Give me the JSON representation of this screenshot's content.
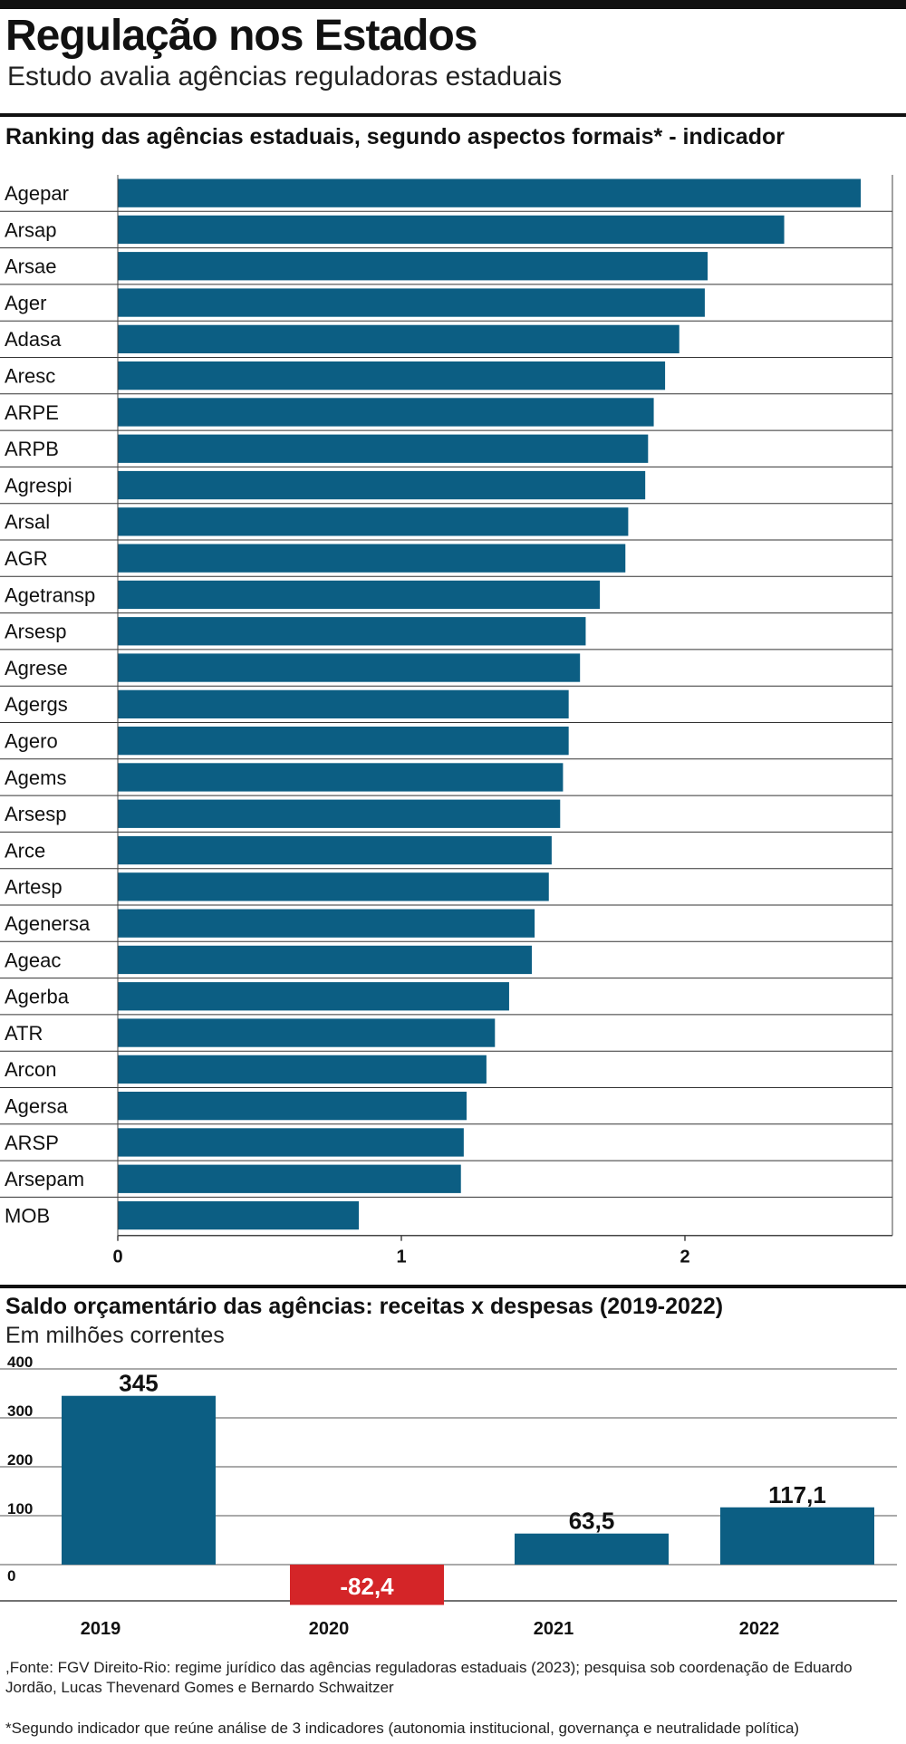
{
  "header": {
    "title": "Regulação nos Estados",
    "subtitle": "Estudo avalia agências reguladoras estaduais"
  },
  "chart_data": [
    {
      "type": "bar",
      "orientation": "horizontal",
      "title": "Ranking das agências estaduais, segundo aspectos formais* - indicador",
      "categories": [
        "Agepar",
        "Arsap",
        "Arsae",
        "Ager",
        "Adasa",
        "Aresc",
        "ARPE",
        "ARPB",
        "Agrespi",
        "Arsal",
        "AGR",
        "Agetransp",
        "Arsesp",
        "Agrese",
        "Agergs",
        "Agero",
        "Agems",
        "Arsesp",
        "Arce",
        "Artesp",
        "Agenersa",
        "Ageac",
        "Agerba",
        "ATR",
        "Arcon",
        "Agersa",
        "ARSP",
        "Arsepam",
        "MOB"
      ],
      "values": [
        2.62,
        2.35,
        2.08,
        2.07,
        1.98,
        1.93,
        1.89,
        1.87,
        1.86,
        1.8,
        1.79,
        1.7,
        1.65,
        1.63,
        1.59,
        1.59,
        1.57,
        1.56,
        1.53,
        1.52,
        1.47,
        1.46,
        1.38,
        1.33,
        1.3,
        1.23,
        1.22,
        1.21,
        0.85
      ],
      "xlim": [
        0,
        2.75
      ],
      "ticks": [
        "0",
        "1",
        "2"
      ],
      "tick_values": [
        0,
        1,
        2
      ],
      "bar_color": "#0c5e83"
    },
    {
      "type": "bar",
      "title": "Saldo orçamentário das agências: receitas x despesas (2019-2022)",
      "subtitle": "Em milhões correntes",
      "categories": [
        "2019",
        "2020",
        "2021",
        "2022"
      ],
      "values": [
        345,
        -82.4,
        63.5,
        117.1
      ],
      "value_labels": [
        "345",
        "-82,4",
        "63,5",
        "117,1"
      ],
      "yticks": [
        "400",
        "300",
        "200",
        "100",
        "0"
      ],
      "ytick_values": [
        400,
        300,
        200,
        100,
        0
      ],
      "ylim": [
        -90,
        400
      ],
      "positive_color": "#0c5e83",
      "negative_color": "#d42528"
    }
  ],
  "footer": {
    "source": ",Fonte: FGV Direito-Rio: regime jurídico das agências reguladoras estaduais (2023); pesquisa sob coordenação de Eduardo Jordão, Lucas Thevenard Gomes e Bernardo Schwaitzer",
    "note": "*Segundo indicador que reúne análise de 3 indicadores (autonomia institucional, governança e neutralidade política)"
  }
}
